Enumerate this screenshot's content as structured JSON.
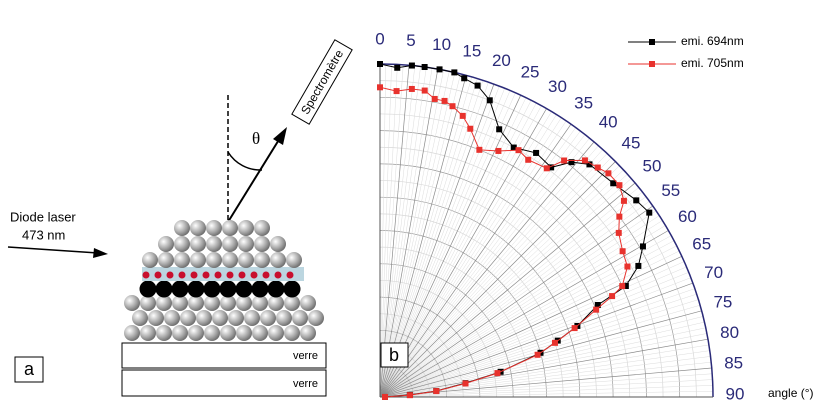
{
  "chart_data": {
    "type": "polar",
    "panel_label": "b",
    "xlabel": "angle (°)",
    "xlim": [
      0,
      90
    ],
    "xticks": [
      0,
      5,
      10,
      15,
      20,
      25,
      30,
      35,
      40,
      45,
      50,
      55,
      60,
      65,
      70,
      75,
      80,
      85,
      90
    ],
    "rlim": [
      0,
      1
    ],
    "grid": true,
    "legend": "upper right",
    "series": [
      {
        "name": "emi. 694nm",
        "color": "#000000",
        "x": [
          0,
          3,
          5.5,
          7.7,
          10.3,
          12.9,
          14.8,
          17.4,
          20.3,
          24,
          28.2,
          32.6,
          36.7,
          39.2,
          42,
          47.5,
          52.5,
          55.6,
          60.2,
          63.1,
          65.7,
          67.1,
          70.2,
          72.4,
          74.6,
          78.2,
          80.8,
          83.9,
          86,
          89.7
        ],
        "values": [
          1.0,
          0.99,
          1.0,
          1.0,
          1.0,
          1.0,
          0.99,
          0.98,
          0.95,
          0.88,
          0.85,
          0.87,
          0.86,
          0.91,
          0.94,
          0.95,
          0.97,
          0.98,
          0.91,
          0.87,
          0.81,
          0.71,
          0.63,
          0.56,
          0.5,
          0.37,
          0.26,
          0.17,
          0.09,
          0.015
        ]
      },
      {
        "name": "emi. 705nm",
        "color": "#e8322d",
        "x": [
          0,
          3.1,
          5.9,
          8.3,
          10.4,
          12.3,
          14,
          16.4,
          18.6,
          21.9,
          25.7,
          29.3,
          32,
          36.1,
          37.9,
          40.9,
          43.5,
          45.6,
          48.5,
          51.2,
          53,
          55.5,
          59,
          62.2,
          65.4,
          66.5,
          68,
          70.5,
          72.8,
          75,
          78.5,
          81,
          84,
          86.5,
          89.7
        ],
        "values": [
          0.93,
          0.92,
          0.93,
          0.93,
          0.91,
          0.91,
          0.9,
          0.88,
          0.85,
          0.8,
          0.82,
          0.85,
          0.84,
          0.85,
          0.9,
          0.94,
          0.95,
          0.96,
          0.96,
          0.94,
          0.9,
          0.87,
          0.85,
          0.84,
          0.8,
          0.76,
          0.7,
          0.62,
          0.55,
          0.49,
          0.36,
          0.26,
          0.17,
          0.09,
          0.015
        ]
      }
    ]
  },
  "schematic": {
    "panel_label": "a",
    "laser": "Diode laser",
    "wavelength": "473 nm",
    "detector": "Spectromètre",
    "angle_symbol": "θ",
    "substrate_top": "verre",
    "substrate_bottom": "verre"
  }
}
